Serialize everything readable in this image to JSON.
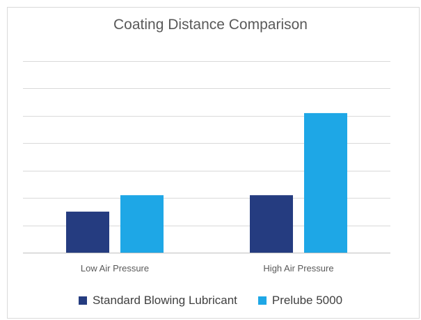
{
  "chart_data": {
    "type": "bar",
    "title": "Coating Distance Comparison",
    "xlabel": "",
    "ylabel": "",
    "categories": [
      "Low Air Pressure",
      "High Air Pressure"
    ],
    "series": [
      {
        "name": "Standard Blowing Lubricant",
        "values": [
          1.5,
          2.1
        ],
        "color": "#253c80"
      },
      {
        "name": "Prelube 5000",
        "values": [
          2.1,
          5.1
        ],
        "color": "#1ea7e6"
      }
    ],
    "ylim": [
      0,
      7
    ],
    "grid": true,
    "legend": "bottom",
    "gridline_color": "#d9d9d9",
    "axis_color": "#bfbfbf"
  }
}
